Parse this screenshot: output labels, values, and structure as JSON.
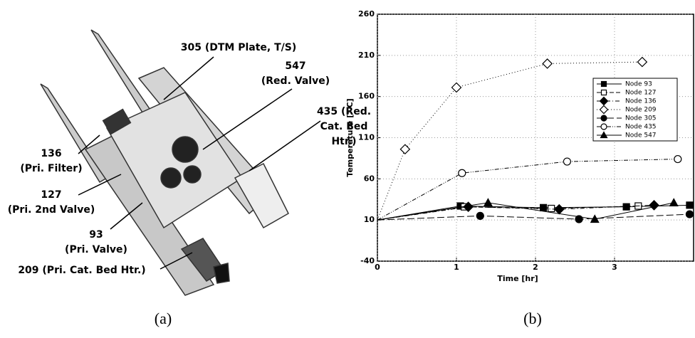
{
  "panel_a": {
    "labels": [
      [
        "305 (DTM Plate, T/S)"
      ],
      [
        "547",
        "(Red. Valve)"
      ],
      [
        "435 (Red.",
        "Cat. Bed",
        "Htr.)"
      ],
      [
        "136",
        "(Pri. Filter)"
      ],
      [
        "127",
        "(Pri. 2nd Valve)"
      ],
      [
        "93",
        "(Pri. Valve)"
      ],
      [
        "209 (Pri. Cat. Bed Htr.)"
      ]
    ],
    "caption": "(a)"
  },
  "panel_b": {
    "caption": "(b)"
  },
  "chart_data": {
    "type": "line",
    "xlabel": "Time [hr]",
    "ylabel": "Temperature [° C]",
    "xlim": [
      0,
      4
    ],
    "ylim": [
      -40,
      260
    ],
    "xticks": [
      0,
      1,
      2,
      3
    ],
    "yticks": [
      -40,
      10,
      60,
      110,
      160,
      210,
      260
    ],
    "grid": true,
    "series": [
      {
        "name": "Node 93",
        "color": "#000000",
        "marker": "square",
        "filled": true,
        "dash": "solid",
        "x": [
          0,
          1.05,
          2.1,
          3.15,
          3.95
        ],
        "values": [
          10,
          27,
          25,
          26,
          28
        ]
      },
      {
        "name": "Node 127",
        "color": "#000000",
        "marker": "square",
        "filled": false,
        "dash": "dashed",
        "x": [
          0,
          1.1,
          2.2,
          3.3
        ],
        "values": [
          10,
          26,
          24,
          27
        ]
      },
      {
        "name": "Node 136",
        "color": "#000000",
        "marker": "diamond",
        "filled": true,
        "dash": "dashdot",
        "x": [
          0,
          1.15,
          2.3,
          3.5
        ],
        "values": [
          10,
          26,
          23,
          28
        ]
      },
      {
        "name": "Node 209",
        "color": "#000000",
        "marker": "diamond",
        "filled": false,
        "dash": "dotted",
        "x": [
          0,
          0.35,
          1.0,
          2.15,
          3.35
        ],
        "values": [
          10,
          96,
          171,
          200,
          202
        ]
      },
      {
        "name": "Node 305",
        "color": "#000000",
        "marker": "circle",
        "filled": true,
        "dash": "longdash",
        "x": [
          0,
          1.3,
          2.55,
          3.95
        ],
        "values": [
          10,
          15,
          11,
          17
        ]
      },
      {
        "name": "Node 435",
        "color": "#000000",
        "marker": "circle",
        "filled": false,
        "dash": "dashdotdot",
        "x": [
          0,
          1.07,
          2.4,
          3.8
        ],
        "values": [
          10,
          67,
          81,
          84
        ]
      },
      {
        "name": "Node 547",
        "color": "#000000",
        "marker": "triangle",
        "filled": true,
        "dash": "solid",
        "x": [
          0,
          1.4,
          2.75,
          3.75
        ],
        "values": [
          10,
          31,
          11,
          31
        ]
      }
    ]
  }
}
